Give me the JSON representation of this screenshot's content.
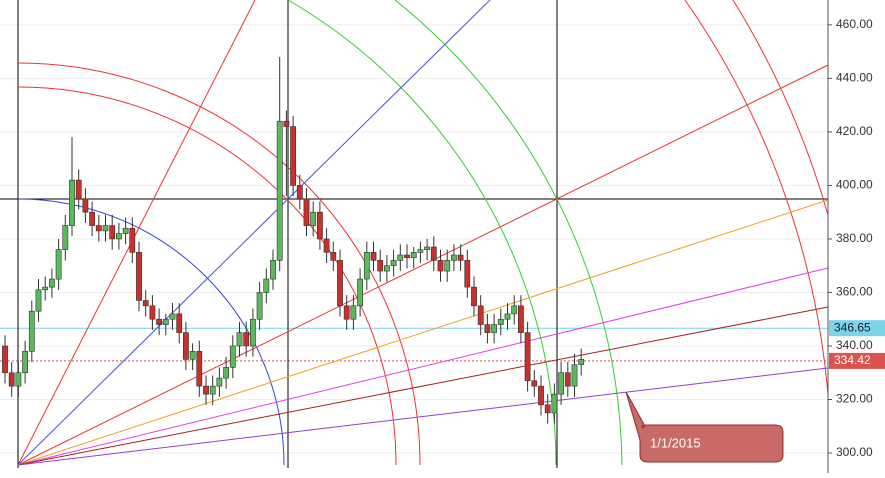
{
  "chart_data": {
    "type": "candlestick",
    "up_color": "#5cb85c",
    "down_color": "#c9302c",
    "ylim": [
      294.4,
      469.3
    ],
    "yticks": [
      {
        "value": 300,
        "label": "300.00"
      },
      {
        "value": 320,
        "label": "320.00"
      },
      {
        "value": 340,
        "label": "340.00"
      },
      {
        "value": 360,
        "label": "360.00"
      },
      {
        "value": 380,
        "label": "380.00"
      },
      {
        "value": 400,
        "label": "400.00"
      },
      {
        "value": 420,
        "label": "420.00"
      },
      {
        "value": 440,
        "label": "440.00"
      },
      {
        "value": 460,
        "label": "460.00"
      }
    ],
    "open": [
      340,
      330,
      325,
      330,
      338,
      353,
      361,
      362,
      365,
      376,
      385,
      402,
      395,
      390,
      385,
      383,
      385,
      380,
      382,
      384,
      375,
      357,
      355,
      350,
      348,
      350,
      352,
      345,
      335,
      338,
      325,
      322,
      325,
      328,
      332,
      340,
      345,
      340,
      350,
      360,
      365,
      372,
      424,
      422,
      400,
      395,
      385,
      390,
      380,
      375,
      372,
      355,
      350,
      355,
      365,
      375,
      372,
      368,
      370,
      372,
      374,
      373,
      375,
      376,
      377,
      372,
      368,
      372,
      374,
      372,
      362,
      355,
      348,
      345,
      348,
      350,
      352,
      355,
      345,
      327,
      325,
      318,
      315,
      322,
      330,
      325,
      333
    ],
    "high": [
      344,
      334,
      334,
      342,
      357,
      365,
      366,
      369,
      380,
      389,
      418,
      406,
      399,
      394,
      389,
      389,
      389,
      386,
      388,
      388,
      379,
      361,
      359,
      354,
      352,
      356,
      356,
      349,
      341,
      342,
      329,
      329,
      332,
      336,
      344,
      349,
      349,
      354,
      364,
      369,
      376,
      448,
      428,
      426,
      404,
      399,
      394,
      394,
      384,
      379,
      376,
      359,
      359,
      369,
      379,
      379,
      376,
      374,
      376,
      378,
      378,
      377,
      379,
      380,
      381,
      376,
      376,
      378,
      378,
      376,
      366,
      359,
      352,
      352,
      354,
      356,
      359,
      359,
      349,
      331,
      329,
      322,
      326,
      334,
      334,
      337,
      339
    ],
    "low": [
      326,
      321,
      321,
      326,
      334,
      349,
      357,
      358,
      361,
      372,
      381,
      391,
      386,
      381,
      379,
      379,
      376,
      376,
      378,
      371,
      353,
      351,
      346,
      344,
      344,
      346,
      341,
      331,
      331,
      321,
      318,
      318,
      321,
      324,
      328,
      336,
      336,
      336,
      346,
      356,
      361,
      368,
      396,
      396,
      391,
      381,
      381,
      376,
      371,
      368,
      351,
      346,
      346,
      351,
      361,
      368,
      364,
      364,
      366,
      368,
      369,
      369,
      371,
      372,
      368,
      364,
      364,
      368,
      368,
      358,
      351,
      344,
      341,
      341,
      344,
      346,
      348,
      341,
      323,
      321,
      314,
      311,
      311,
      318,
      321,
      321,
      329
    ],
    "close": [
      330,
      325,
      330,
      338,
      353,
      361,
      362,
      365,
      376,
      385,
      402,
      395,
      390,
      385,
      383,
      385,
      380,
      382,
      384,
      375,
      357,
      355,
      350,
      348,
      350,
      352,
      345,
      335,
      338,
      325,
      322,
      325,
      328,
      332,
      340,
      345,
      340,
      350,
      360,
      365,
      372,
      424,
      422,
      400,
      395,
      385,
      390,
      380,
      375,
      372,
      355,
      350,
      355,
      365,
      375,
      372,
      368,
      370,
      372,
      374,
      373,
      375,
      376,
      377,
      372,
      368,
      372,
      374,
      372,
      362,
      355,
      348,
      345,
      348,
      350,
      352,
      355,
      345,
      327,
      325,
      318,
      315,
      322,
      330,
      325,
      333,
      335
    ],
    "price_markers": [
      {
        "value": 346.65,
        "color": "#7dd3e8"
      },
      {
        "value": 334.42,
        "color": "#d9534f"
      }
    ],
    "annotation": "1/1/2015"
  }
}
